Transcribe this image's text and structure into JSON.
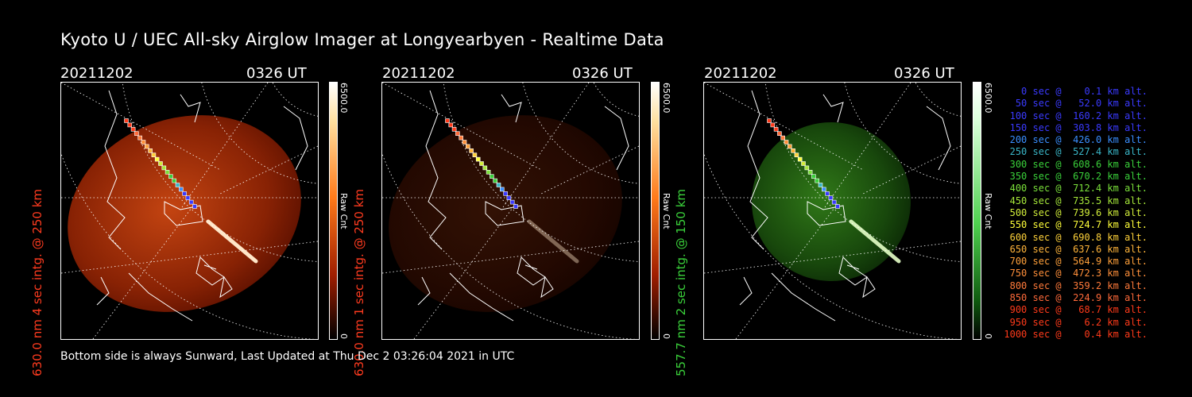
{
  "title": "Kyoto U / UEC All-sky Airglow Imager at Longyearbyen - Realtime Data",
  "panels": [
    {
      "date": "20211202",
      "time": "0326 UT",
      "side_label": "630.0 nm 4 sec intg. @ 250 km",
      "side_color": "#ff3b1f",
      "cbar_max": "6500.0",
      "cbar_min": "0",
      "cbar_unit": "Raw Cnt",
      "cmap": "red",
      "brightness": 0.85
    },
    {
      "date": "20211202",
      "time": "0326 UT",
      "side_label": "630.0 nm 1 sec intg. @ 250 km",
      "side_color": "#ff3b1f",
      "cbar_max": "6500.0",
      "cbar_min": "0",
      "cbar_unit": "Raw Cnt",
      "cmap": "red",
      "brightness": 0.22
    },
    {
      "date": "20211202",
      "time": "0326 UT",
      "side_label": "557.7 nm 2 sec intg. @ 150 km",
      "side_color": "#3ad13a",
      "cbar_max": "6500.0",
      "cbar_min": "0",
      "cbar_unit": "Raw Cnt",
      "cmap": "green",
      "brightness": 0.6
    }
  ],
  "footer": "Bottom side is always Sunward, Last Updated at Thu Dec  2 03:26:04 2021 in UTC",
  "legend": [
    {
      "text": "   0 sec @    0.1 km alt.",
      "color": "#3a3aff"
    },
    {
      "text": "  50 sec @   52.0 km alt.",
      "color": "#3a3aff"
    },
    {
      "text": " 100 sec @  160.2 km alt.",
      "color": "#3a3aff"
    },
    {
      "text": " 150 sec @  303.8 km alt.",
      "color": "#3a3aff"
    },
    {
      "text": " 200 sec @  426.0 km alt.",
      "color": "#3a8fff"
    },
    {
      "text": " 250 sec @  527.4 km alt.",
      "color": "#3ab6c8"
    },
    {
      "text": " 300 sec @  608.6 km alt.",
      "color": "#3ad13a"
    },
    {
      "text": " 350 sec @  670.2 km alt.",
      "color": "#3ad13a"
    },
    {
      "text": " 400 sec @  712.4 km alt.",
      "color": "#7ae03a"
    },
    {
      "text": " 450 sec @  735.5 km alt.",
      "color": "#a6e83a"
    },
    {
      "text": " 500 sec @  739.6 km alt.",
      "color": "#d2ee3a"
    },
    {
      "text": " 550 sec @  724.7 km alt.",
      "color": "#ffff3a"
    },
    {
      "text": " 600 sec @  690.8 km alt.",
      "color": "#ffd23a"
    },
    {
      "text": " 650 sec @  637.6 km alt.",
      "color": "#ffb43a"
    },
    {
      "text": " 700 sec @  564.9 km alt.",
      "color": "#ffa03a"
    },
    {
      "text": " 750 sec @  472.3 km alt.",
      "color": "#ff8f3a"
    },
    {
      "text": " 800 sec @  359.2 km alt.",
      "color": "#ff7a3a"
    },
    {
      "text": " 850 sec @  224.9 km alt.",
      "color": "#ff6a3a"
    },
    {
      "text": " 900 sec @   68.7 km alt.",
      "color": "#ff3a1a"
    },
    {
      "text": " 950 sec @    6.2 km alt.",
      "color": "#ff3a1a"
    },
    {
      "text": "1000 sec @    0.4 km alt.",
      "color": "#ff3a1a"
    }
  ]
}
